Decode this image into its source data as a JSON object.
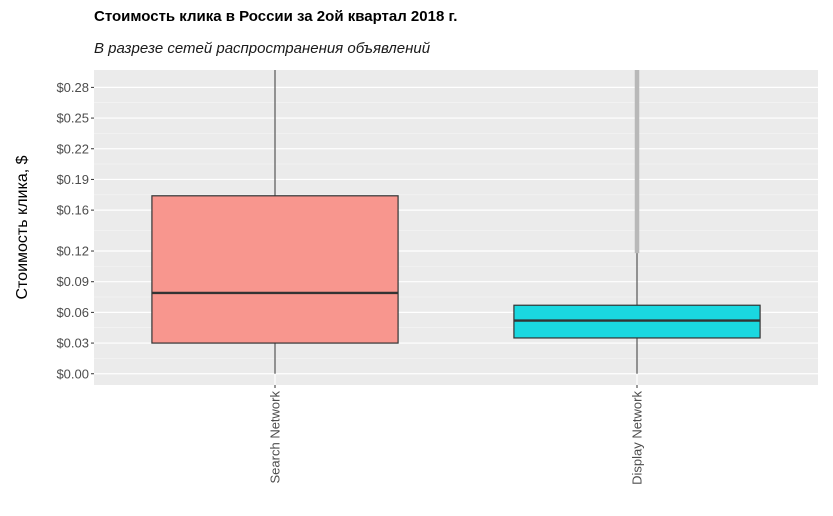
{
  "chart_data": {
    "type": "boxplot",
    "title": "Стоимость клика в России за 2ой квартал 2018 г.",
    "subtitle": "В разрезе сетей распространения объявлений",
    "xlabel": "",
    "ylabel": "Стоимость клика, $",
    "ylim": [
      -0.011,
      0.297
    ],
    "y_ticks": [
      0.0,
      0.03,
      0.06,
      0.09,
      0.12,
      0.16,
      0.19,
      0.22,
      0.25,
      0.28
    ],
    "y_tick_labels": [
      "$0.00",
      "$0.03",
      "$0.06",
      "$0.09",
      "$0.12",
      "$0.16",
      "$0.19",
      "$0.22",
      "$0.25",
      "$0.28"
    ],
    "grid": true,
    "legend": "none",
    "categories": [
      "Search Network",
      "Display Network"
    ],
    "boxes": [
      {
        "category": "Search Network",
        "whisker_low": 0.0,
        "q1": 0.03,
        "median": 0.079,
        "q3": 0.174,
        "whisker_high": 0.297,
        "outliers_from": null,
        "fill": "#f8968e"
      },
      {
        "category": "Display Network",
        "whisker_low": 0.0,
        "q1": 0.035,
        "median": 0.052,
        "q3": 0.067,
        "whisker_high": 0.118,
        "outliers_from": 0.118,
        "outliers_to": 0.297,
        "fill": "#1ad8e0"
      }
    ],
    "colors": {
      "panel_bg": "#ebebeb",
      "grid_major": "#ffffff",
      "box_border": "#333333",
      "outlier": "#b8b8b8",
      "tick_text": "#4d4d4d"
    }
  }
}
